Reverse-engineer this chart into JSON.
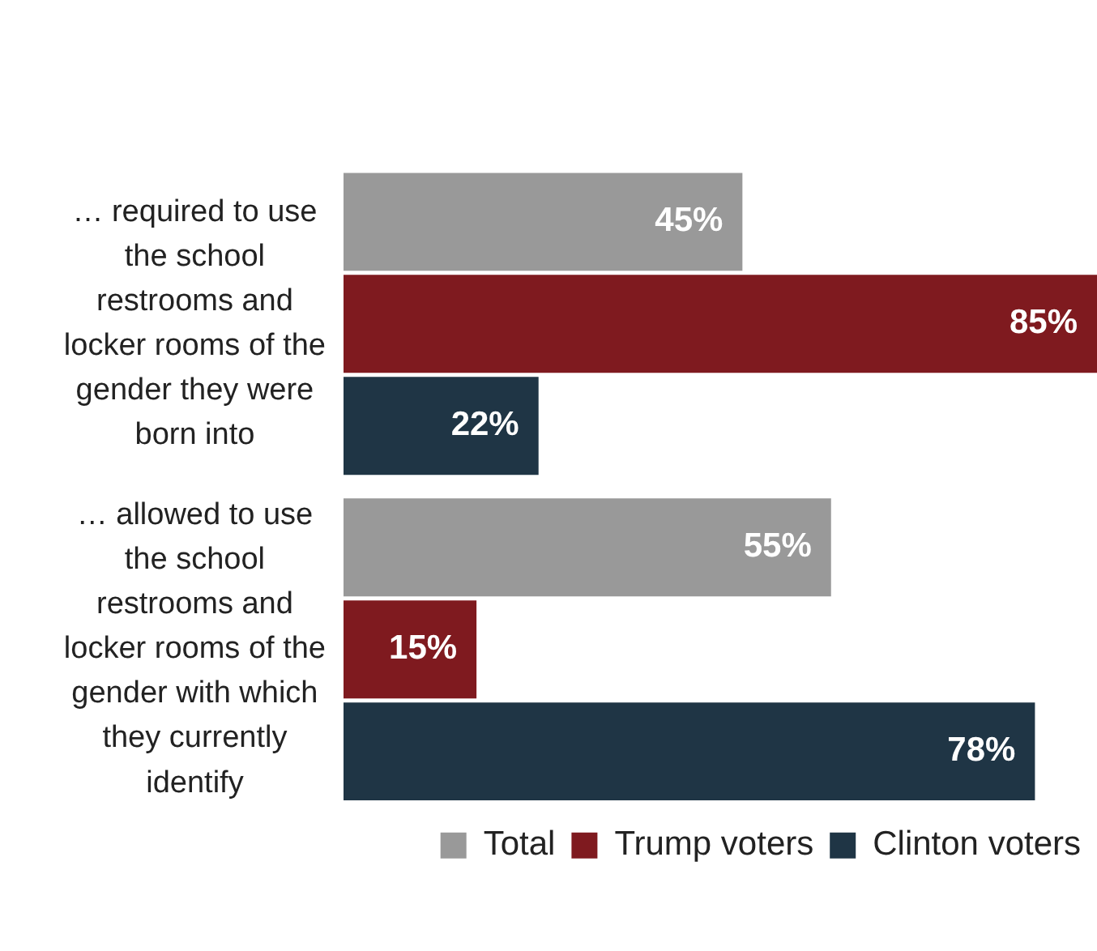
{
  "chart_data": {
    "type": "bar",
    "orientation": "horizontal",
    "categories": [
      "… required to use the school restrooms and locker rooms of the gender they were born into",
      "… allowed to use the school restrooms and locker rooms of the gender with which they currently identify"
    ],
    "series": [
      {
        "name": "Total",
        "color": "#999999",
        "values": [
          45,
          55
        ],
        "value_labels": [
          "45%",
          "55%"
        ]
      },
      {
        "name": "Trump voters",
        "color": "#7f1a1f",
        "values": [
          85,
          15
        ],
        "value_labels": [
          "85%",
          "15%"
        ]
      },
      {
        "name": "Clinton voters",
        "color": "#1f3545",
        "values": [
          22,
          78
        ],
        "value_labels": [
          "22%",
          "78%"
        ]
      }
    ],
    "legend": "bottom"
  }
}
